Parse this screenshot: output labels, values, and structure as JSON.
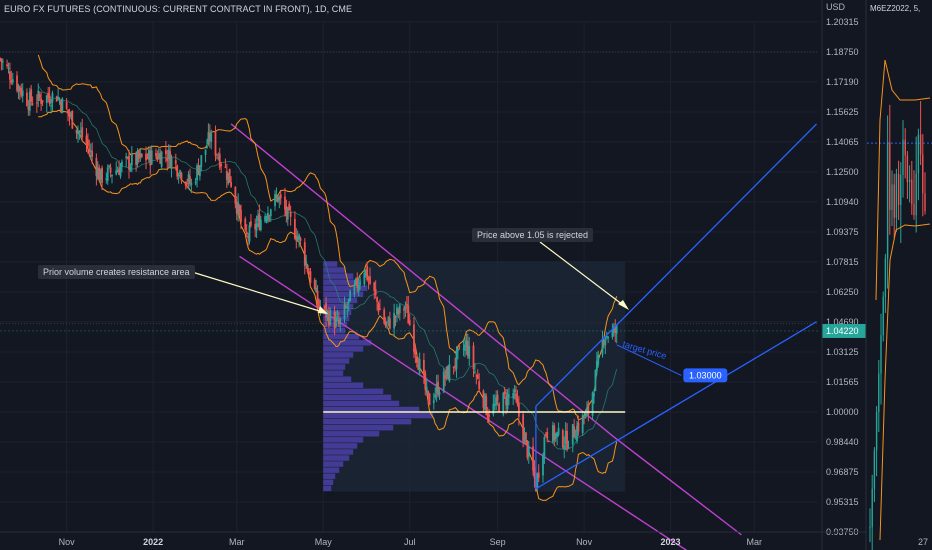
{
  "chart_title": "EURO FX FUTURES (CONTINUOUS: CURRENT CONTRACT IN FRONT), 1D, CME",
  "side_title": "M6EZ2022, 5,",
  "currency_label": "USD",
  "annotations": {
    "volume_note": "Prior volume creates resistance area",
    "rejection_note": "Price above 1.05 is rejected",
    "target_label": "target price",
    "target_value": "1.03000"
  },
  "colors": {
    "background": "#131722",
    "bull_candle": "#26a69a",
    "bear_candle": "#ef5350",
    "bollinger": "#f7931a",
    "channel": "#c040d0",
    "trend_lines": "#2962ff",
    "horizontal_line": "#fff9c4",
    "volume_profile": "#4b3fa8",
    "price_tag": "#26a69a"
  },
  "chart_data": {
    "type": "candlestick",
    "title": "EURO FX FUTURES (CONTINUOUS: CURRENT CONTRACT IN FRONT), 1D, CME",
    "y_unit": "USD",
    "y_ticks": [
      "1.20315",
      "1.18750",
      "1.17190",
      "1.15625",
      "1.14065",
      "1.12500",
      "1.10940",
      "1.09375",
      "1.07815",
      "1.06250",
      "1.04690",
      "1.03125",
      "1.01565",
      "1.00000",
      "0.98440",
      "0.96875",
      "0.95315",
      "0.93750"
    ],
    "ylim": [
      0.9375,
      1.2031
    ],
    "x_ticks": [
      {
        "label": "Nov",
        "bold": false
      },
      {
        "label": "2022",
        "bold": true
      },
      {
        "label": "Mar",
        "bold": false
      },
      {
        "label": "May",
        "bold": false
      },
      {
        "label": "Jul",
        "bold": false
      },
      {
        "label": "Sep",
        "bold": false
      },
      {
        "label": "Nov",
        "bold": false
      },
      {
        "label": "2023",
        "bold": true
      },
      {
        "label": "Mar",
        "bold": false
      }
    ],
    "x_range": [
      "2021-09-15",
      "2023-04-15"
    ],
    "last_price": "1.04220",
    "horizontal_level": 1.0,
    "approx_price_path": [
      [
        "2021-09-15",
        1.184
      ],
      [
        "2021-10-05",
        1.162
      ],
      [
        "2021-10-25",
        1.165
      ],
      [
        "2021-11-15",
        1.14
      ],
      [
        "2021-11-25",
        1.122
      ],
      [
        "2021-12-15",
        1.13
      ],
      [
        "2022-01-10",
        1.135
      ],
      [
        "2022-01-28",
        1.118
      ],
      [
        "2022-02-10",
        1.143
      ],
      [
        "2022-02-25",
        1.12
      ],
      [
        "2022-03-07",
        1.09
      ],
      [
        "2022-03-30",
        1.112
      ],
      [
        "2022-04-14",
        1.09
      ],
      [
        "2022-04-28",
        1.055
      ],
      [
        "2022-05-12",
        1.045
      ],
      [
        "2022-05-30",
        1.075
      ],
      [
        "2022-06-14",
        1.045
      ],
      [
        "2022-06-28",
        1.055
      ],
      [
        "2022-07-14",
        1.005
      ],
      [
        "2022-08-01",
        1.025
      ],
      [
        "2022-08-10",
        1.035
      ],
      [
        "2022-08-25",
        1.0
      ],
      [
        "2022-09-12",
        1.01
      ],
      [
        "2022-09-28",
        0.962
      ],
      [
        "2022-10-05",
        0.99
      ],
      [
        "2022-10-20",
        0.985
      ],
      [
        "2022-11-04",
        1.0
      ],
      [
        "2022-11-15",
        1.04
      ],
      [
        "2022-11-24",
        1.042
      ]
    ],
    "side_chart": {
      "title": "M6EZ2022, 5,",
      "x_ticks": [
        "27"
      ]
    }
  }
}
